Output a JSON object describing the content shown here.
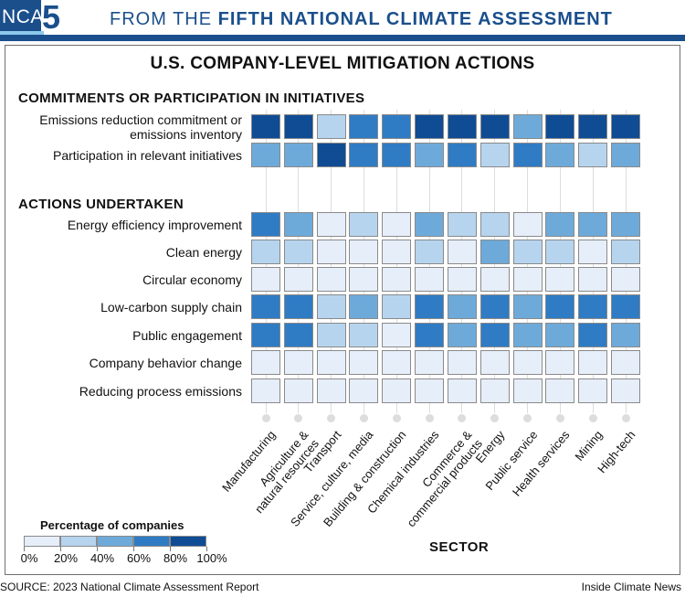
{
  "header": {
    "logo_text": "NCA",
    "logo_number": "5",
    "prefix": "FROM THE ",
    "emphasis": "FIFTH NATIONAL CLIMATE ASSESSMENT"
  },
  "chart_data": {
    "type": "heatmap",
    "title": "U.S. COMPANY-LEVEL MITIGATION ACTIONS",
    "xlabel": "SECTOR",
    "value_unit": "percentage of companies",
    "sectors": [
      "Manufacturing",
      "Agriculture & natural resources",
      "Transport",
      "Service, culture, media",
      "Building & construction",
      "Chemical industries",
      "Commerce & commercial products",
      "Energy",
      "Public service",
      "Health services",
      "Mining",
      "High-tech"
    ],
    "groups": [
      {
        "name": "COMMITMENTS OR PARTICIPATION IN INITIATIVES",
        "rows": [
          {
            "label": "Emissions reduction commitment or emissions inventory",
            "values": [
              90,
              90,
              30,
              70,
              70,
              90,
              90,
              90,
              50,
              90,
              90,
              90
            ]
          },
          {
            "label": "Participation in relevant initiatives",
            "values": [
              50,
              50,
              90,
              70,
              70,
              50,
              70,
              30,
              70,
              50,
              30,
              50
            ]
          }
        ]
      },
      {
        "name": "ACTIONS UNDERTAKEN",
        "rows": [
          {
            "label": "Energy efficiency improvement",
            "values": [
              70,
              50,
              10,
              30,
              10,
              50,
              30,
              30,
              10,
              50,
              50,
              50
            ]
          },
          {
            "label": "Clean energy",
            "values": [
              30,
              30,
              10,
              10,
              10,
              30,
              10,
              50,
              30,
              30,
              10,
              30
            ]
          },
          {
            "label": "Circular economy",
            "values": [
              10,
              10,
              10,
              10,
              10,
              10,
              10,
              10,
              10,
              10,
              10,
              10
            ]
          },
          {
            "label": "Low-carbon supply chain",
            "values": [
              70,
              70,
              30,
              50,
              30,
              70,
              50,
              70,
              50,
              70,
              70,
              70
            ]
          },
          {
            "label": "Public engagement",
            "values": [
              70,
              70,
              30,
              30,
              10,
              70,
              50,
              70,
              50,
              50,
              70,
              50
            ]
          },
          {
            "label": "Company behavior change",
            "values": [
              10,
              10,
              10,
              10,
              10,
              10,
              10,
              10,
              10,
              10,
              10,
              10
            ]
          },
          {
            "label": "Reducing process emissions",
            "values": [
              10,
              10,
              10,
              10,
              10,
              10,
              10,
              10,
              10,
              10,
              10,
              10
            ]
          }
        ]
      }
    ],
    "legend": {
      "title": "Percentage of companies",
      "bins": [
        [
          0,
          20
        ],
        [
          20,
          40
        ],
        [
          40,
          60
        ],
        [
          60,
          80
        ],
        [
          80,
          100
        ]
      ],
      "colors": [
        "#e6eefa",
        "#b6d4ee",
        "#6eaad9",
        "#2f7cc4",
        "#0f4c94"
      ],
      "tick_labels": [
        "0%",
        "20%",
        "40%",
        "60%",
        "80%",
        "100%"
      ],
      "placement": "bottom-left"
    }
  },
  "footer": {
    "source": "SOURCE: 2023 National Climate Assessment Report",
    "credit": "Inside Climate News"
  }
}
